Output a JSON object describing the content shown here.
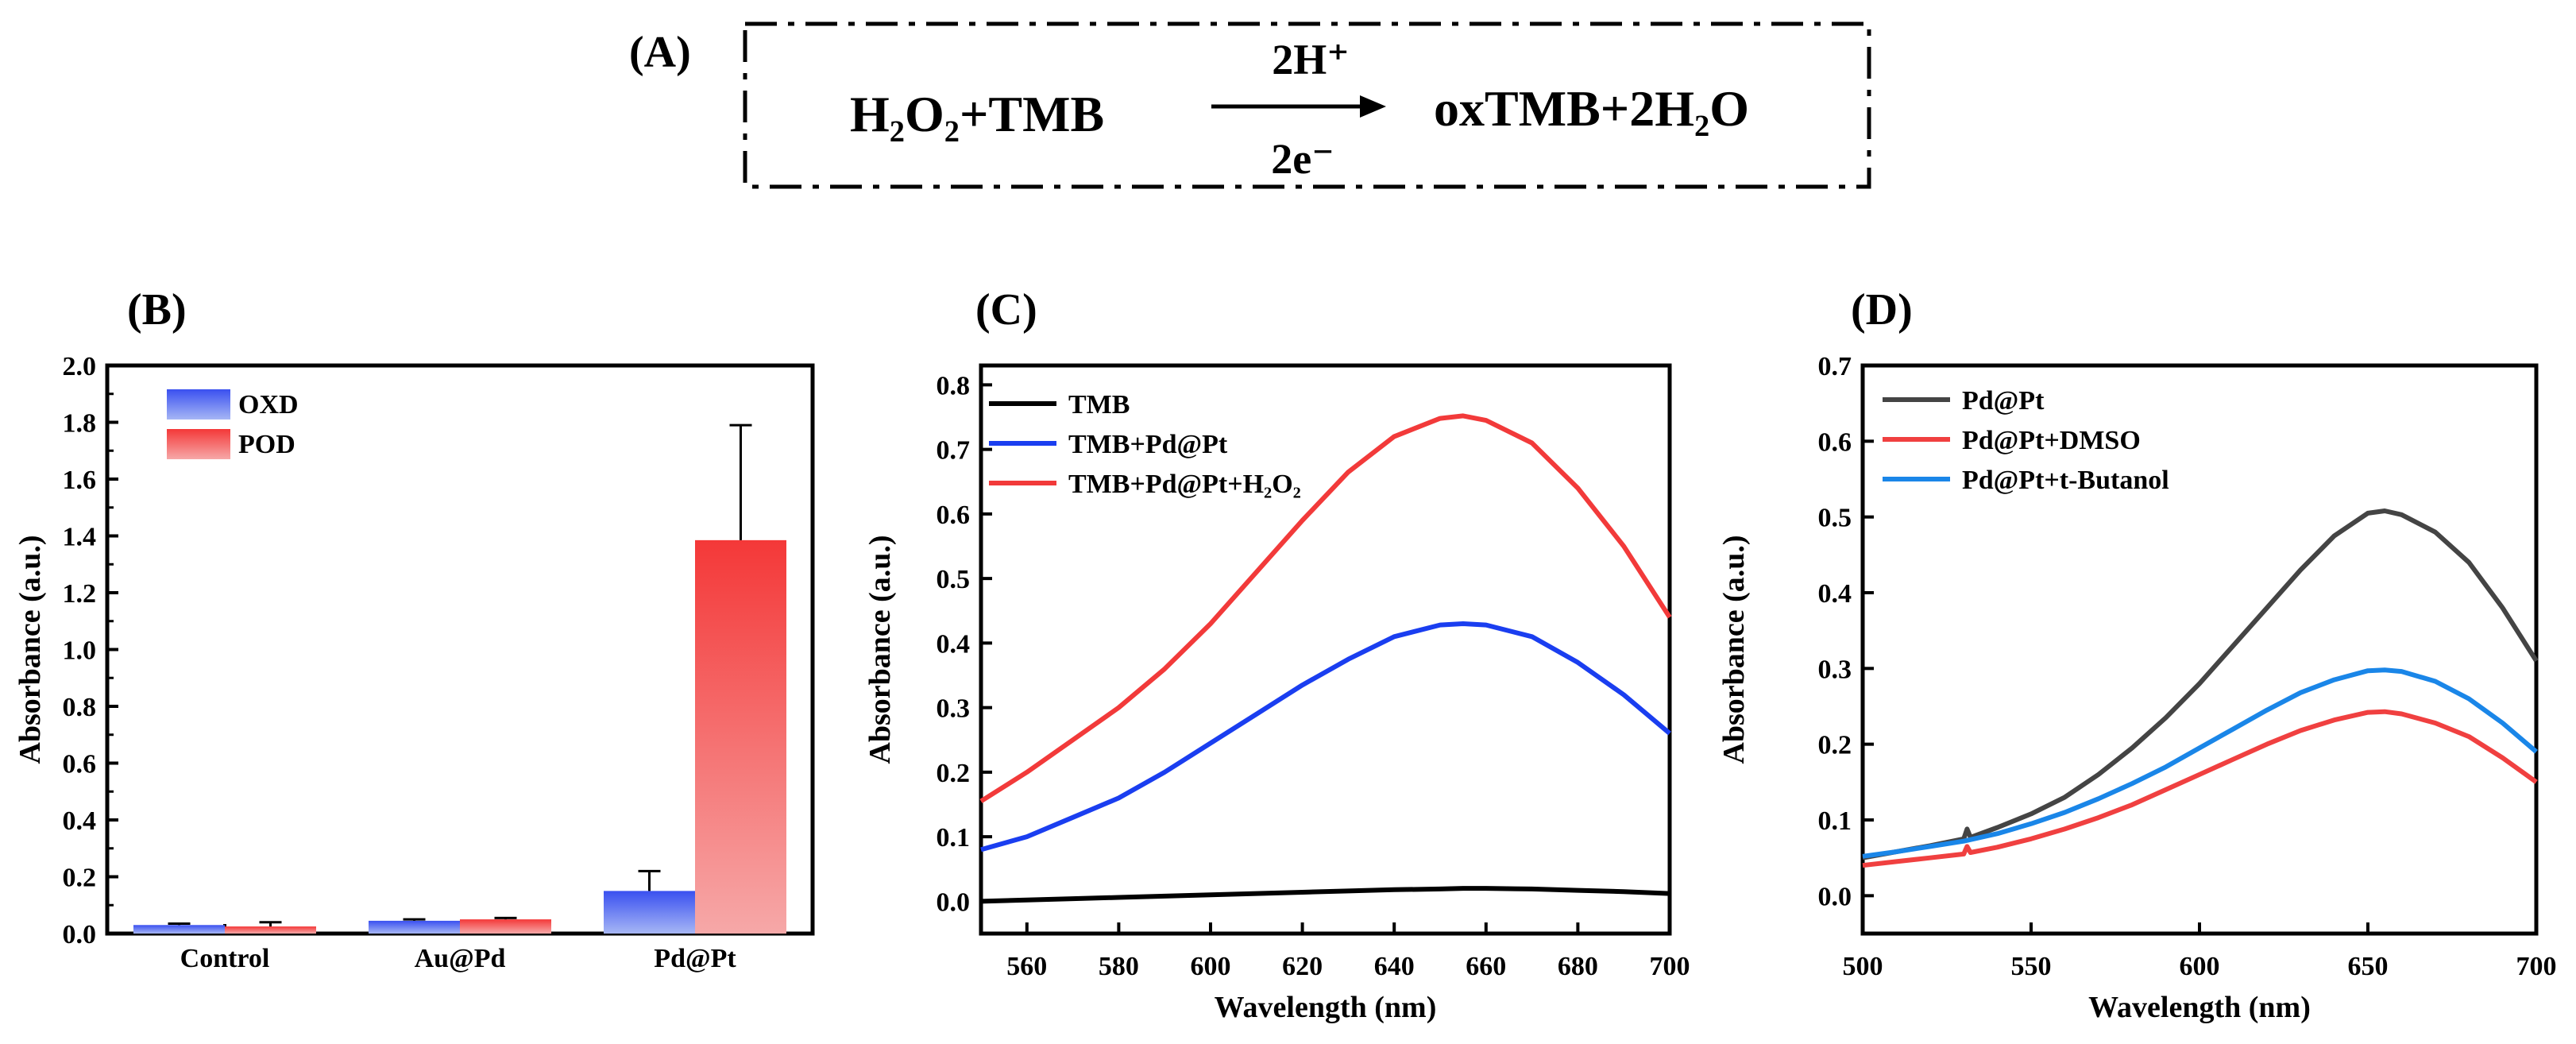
{
  "panel_a": {
    "label": "(A)",
    "reactant_1": "H₂O₂",
    "plus": "+",
    "reactant_2": "TMB",
    "above_arrow": "2H⁺",
    "below_arrow": "2e⁻",
    "product_1": "oxTMB",
    "product_2": "2H₂O"
  },
  "chart_data": [
    {
      "id": "B",
      "panel_label": "(B)",
      "type": "bar",
      "ylabel": "Absorbance (a.u.)",
      "xlabel": "",
      "ylim": [
        0,
        2.0
      ],
      "yticks": [
        0.0,
        0.2,
        0.4,
        0.6,
        0.8,
        1.0,
        1.2,
        1.4,
        1.6,
        1.8,
        2.0
      ],
      "ytick_labels": [
        "0.0",
        "0.2",
        "0.4",
        "0.6",
        "0.8",
        "1.0",
        "1.2",
        "1.4",
        "1.6",
        "1.8",
        "2.0"
      ],
      "categories": [
        "Control",
        "Au@Pd",
        "Pd@Pt"
      ],
      "series": [
        {
          "name": "OXD",
          "color": "#3a50f0",
          "color_light": "#a6b6f5",
          "values": [
            0.03,
            0.045,
            0.15
          ],
          "errors": [
            0.005,
            0.005,
            0.07
          ]
        },
        {
          "name": "POD",
          "color": "#f43838",
          "color_light": "#f6a8a8",
          "values": [
            0.025,
            0.05,
            1.385
          ],
          "errors": [
            0.015,
            0.005,
            0.405
          ]
        }
      ],
      "legend": "top-left"
    },
    {
      "id": "C",
      "panel_label": "(C)",
      "type": "line",
      "xlabel": "Wavelength (nm)",
      "ylabel": "Absorbance (a.u.)",
      "xlim": [
        550,
        700
      ],
      "ylim": [
        -0.05,
        0.83
      ],
      "xticks": [
        560,
        580,
        600,
        620,
        640,
        660,
        680,
        700
      ],
      "yticks": [
        0.0,
        0.1,
        0.2,
        0.3,
        0.4,
        0.5,
        0.6,
        0.7,
        0.8
      ],
      "ytick_labels": [
        "0.0",
        "0.1",
        "0.2",
        "0.3",
        "0.4",
        "0.5",
        "0.6",
        "0.7",
        "0.8"
      ],
      "series": [
        {
          "name": "TMB",
          "color": "#000000",
          "x": [
            550,
            560,
            570,
            580,
            590,
            600,
            610,
            620,
            630,
            640,
            650,
            655,
            660,
            670,
            680,
            690,
            700
          ],
          "y": [
            0.0,
            0.002,
            0.004,
            0.006,
            0.008,
            0.01,
            0.012,
            0.014,
            0.016,
            0.018,
            0.019,
            0.02,
            0.02,
            0.019,
            0.017,
            0.015,
            0.012
          ]
        },
        {
          "name": "TMB+Pd@Pt",
          "color": "#1a3ef0",
          "x": [
            550,
            560,
            570,
            580,
            590,
            600,
            610,
            620,
            630,
            640,
            650,
            655,
            660,
            670,
            680,
            690,
            700
          ],
          "y": [
            0.08,
            0.1,
            0.13,
            0.16,
            0.2,
            0.245,
            0.29,
            0.335,
            0.375,
            0.41,
            0.428,
            0.43,
            0.428,
            0.41,
            0.37,
            0.32,
            0.26
          ]
        },
        {
          "name": "TMB+Pd@Pt+H₂O₂",
          "color": "#f23a3a",
          "x": [
            550,
            560,
            570,
            580,
            590,
            600,
            610,
            620,
            630,
            640,
            650,
            655,
            660,
            670,
            680,
            690,
            700
          ],
          "y": [
            0.155,
            0.2,
            0.25,
            0.3,
            0.36,
            0.43,
            0.51,
            0.59,
            0.665,
            0.72,
            0.748,
            0.752,
            0.745,
            0.71,
            0.64,
            0.55,
            0.44
          ]
        }
      ],
      "legend": "top-left"
    },
    {
      "id": "D",
      "panel_label": "(D)",
      "type": "line",
      "xlabel": "Wavelength (nm)",
      "ylabel": "Absorbance (a.u.)",
      "xlim": [
        500,
        700
      ],
      "ylim": [
        -0.05,
        0.7
      ],
      "xticks": [
        500,
        550,
        600,
        650,
        700
      ],
      "yticks": [
        0.0,
        0.1,
        0.2,
        0.3,
        0.4,
        0.5,
        0.6,
        0.7
      ],
      "ytick_labels": [
        "0.0",
        "0.1",
        "0.2",
        "0.3",
        "0.4",
        "0.5",
        "0.6",
        "0.7"
      ],
      "series": [
        {
          "name": "Pd@Pt",
          "color": "#444444",
          "x": [
            500,
            510,
            520,
            530,
            531,
            532,
            540,
            550,
            560,
            570,
            580,
            590,
            600,
            610,
            620,
            630,
            640,
            650,
            655,
            660,
            670,
            680,
            690,
            700
          ],
          "y": [
            0.05,
            0.058,
            0.066,
            0.075,
            0.088,
            0.077,
            0.09,
            0.108,
            0.13,
            0.16,
            0.195,
            0.235,
            0.28,
            0.33,
            0.38,
            0.43,
            0.475,
            0.505,
            0.508,
            0.503,
            0.48,
            0.44,
            0.38,
            0.31
          ]
        },
        {
          "name": "Pd@Pt+DMSO",
          "color": "#f04040",
          "x": [
            500,
            510,
            520,
            530,
            531,
            532,
            540,
            550,
            560,
            570,
            580,
            590,
            600,
            610,
            620,
            630,
            640,
            650,
            655,
            660,
            670,
            680,
            690,
            700
          ],
          "y": [
            0.04,
            0.045,
            0.05,
            0.055,
            0.065,
            0.057,
            0.064,
            0.075,
            0.088,
            0.103,
            0.12,
            0.14,
            0.16,
            0.18,
            0.2,
            0.218,
            0.232,
            0.242,
            0.243,
            0.24,
            0.228,
            0.21,
            0.182,
            0.15
          ]
        },
        {
          "name": "Pd@Pt+t-Butanol",
          "color": "#1a86e8",
          "x": [
            500,
            510,
            520,
            530,
            540,
            550,
            560,
            570,
            580,
            590,
            600,
            610,
            620,
            630,
            640,
            650,
            655,
            660,
            670,
            680,
            690,
            700
          ],
          "y": [
            0.052,
            0.058,
            0.065,
            0.072,
            0.082,
            0.095,
            0.11,
            0.128,
            0.148,
            0.17,
            0.195,
            0.22,
            0.245,
            0.268,
            0.285,
            0.297,
            0.298,
            0.296,
            0.283,
            0.26,
            0.228,
            0.19
          ]
        }
      ],
      "legend": "top-left"
    }
  ]
}
